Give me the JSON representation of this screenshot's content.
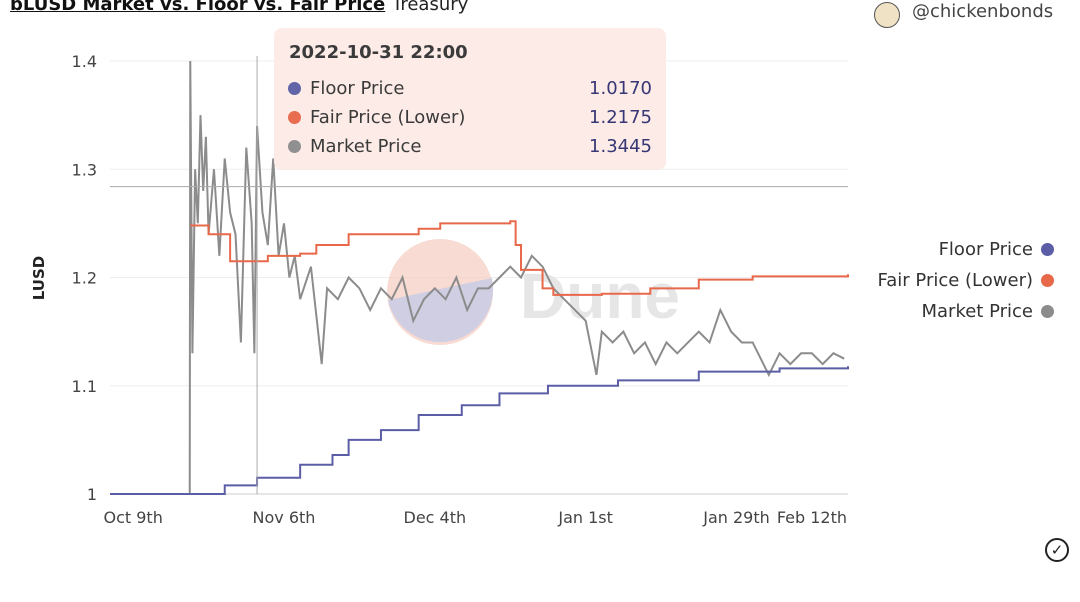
{
  "header": {
    "title": "bLUSD Market vs. Floor vs. Fair Price",
    "subtitle": "Treasury",
    "user": "@chickenbonds"
  },
  "tooltip": {
    "date": "2022-10-31 22:00",
    "rows": [
      {
        "label": "Floor Price",
        "value": "1.0170",
        "color": "#5b5ea6"
      },
      {
        "label": "Fair Price (Lower)",
        "value": "1.2175",
        "color": "#e8684a"
      },
      {
        "label": "Market Price",
        "value": "1.3445",
        "color": "#8c8c8c"
      }
    ]
  },
  "watermark": "Dune",
  "chart_data": {
    "type": "line",
    "title": "bLUSD Market vs. Floor vs. Fair Price",
    "xlabel": "",
    "ylabel": "LUSD",
    "x_unit": "days since Oct 9th",
    "xlim": [
      -4.3,
      132.7
    ],
    "ylim": [
      1,
      1.4
    ],
    "yticks": [
      {
        "v": 1,
        "label": "1"
      },
      {
        "v": 1.1,
        "label": "1.1"
      },
      {
        "v": 1.2,
        "label": "1.2"
      },
      {
        "v": 1.3,
        "label": "1.3"
      },
      {
        "v": 1.4,
        "label": "1.4"
      }
    ],
    "xticks": [
      {
        "v": 0,
        "label": "Oct 9th"
      },
      {
        "v": 28,
        "label": "Nov 6th"
      },
      {
        "v": 56,
        "label": "Dec 4th"
      },
      {
        "v": 84,
        "label": "Jan 1st"
      },
      {
        "v": 112,
        "label": "Jan 29th"
      },
      {
        "v": 126,
        "label": "Feb 12th"
      }
    ],
    "grid": true,
    "legend": "right",
    "crosshair": {
      "x": 23,
      "y": 1.284
    },
    "series": [
      {
        "name": "Floor Price",
        "color": "#5b5ea6",
        "step": true,
        "points": [
          [
            -4.3,
            1.0
          ],
          [
            10.6,
            1.0
          ],
          [
            17,
            1.008
          ],
          [
            23,
            1.015
          ],
          [
            31,
            1.027
          ],
          [
            37,
            1.036
          ],
          [
            40,
            1.05
          ],
          [
            46,
            1.059
          ],
          [
            53,
            1.073
          ],
          [
            61,
            1.082
          ],
          [
            68,
            1.093
          ],
          [
            77,
            1.1
          ],
          [
            90,
            1.105
          ],
          [
            105,
            1.113
          ],
          [
            120,
            1.116
          ],
          [
            132.7,
            1.118
          ]
        ]
      },
      {
        "name": "Fair Price (Lower)",
        "color": "#e8684a",
        "step": true,
        "points": [
          [
            10.6,
            1.248
          ],
          [
            14,
            1.24
          ],
          [
            18,
            1.215
          ],
          [
            25,
            1.22
          ],
          [
            31,
            1.222
          ],
          [
            34,
            1.23
          ],
          [
            40,
            1.24
          ],
          [
            53,
            1.245
          ],
          [
            57,
            1.25
          ],
          [
            70,
            1.252
          ],
          [
            71,
            1.23
          ],
          [
            72,
            1.207
          ],
          [
            76,
            1.19
          ],
          [
            78,
            1.184
          ],
          [
            87,
            1.185
          ],
          [
            96,
            1.19
          ],
          [
            105,
            1.198
          ],
          [
            115,
            1.201
          ],
          [
            132.7,
            1.203
          ]
        ]
      },
      {
        "name": "Market Price",
        "color": "#8c8c8c",
        "step": false,
        "points": [
          [
            10.5,
            1.0
          ],
          [
            10.6,
            1.4
          ],
          [
            11,
            1.13
          ],
          [
            11.5,
            1.3
          ],
          [
            12,
            1.25
          ],
          [
            12.5,
            1.35
          ],
          [
            13,
            1.28
          ],
          [
            13.5,
            1.33
          ],
          [
            14,
            1.24
          ],
          [
            15,
            1.3
          ],
          [
            16,
            1.22
          ],
          [
            17,
            1.31
          ],
          [
            18,
            1.26
          ],
          [
            19,
            1.24
          ],
          [
            20,
            1.14
          ],
          [
            21,
            1.32
          ],
          [
            22,
            1.25
          ],
          [
            22.5,
            1.13
          ],
          [
            23,
            1.34
          ],
          [
            24,
            1.26
          ],
          [
            25,
            1.23
          ],
          [
            26,
            1.31
          ],
          [
            27,
            1.22
          ],
          [
            28,
            1.25
          ],
          [
            29,
            1.2
          ],
          [
            30,
            1.22
          ],
          [
            31,
            1.18
          ],
          [
            33,
            1.21
          ],
          [
            35,
            1.12
          ],
          [
            36,
            1.19
          ],
          [
            38,
            1.18
          ],
          [
            40,
            1.2
          ],
          [
            42,
            1.19
          ],
          [
            44,
            1.17
          ],
          [
            46,
            1.19
          ],
          [
            48,
            1.18
          ],
          [
            50,
            1.2
          ],
          [
            52,
            1.16
          ],
          [
            54,
            1.18
          ],
          [
            56,
            1.19
          ],
          [
            58,
            1.18
          ],
          [
            60,
            1.2
          ],
          [
            62,
            1.17
          ],
          [
            64,
            1.19
          ],
          [
            66,
            1.19
          ],
          [
            68,
            1.2
          ],
          [
            70,
            1.21
          ],
          [
            72,
            1.2
          ],
          [
            74,
            1.22
          ],
          [
            76,
            1.21
          ],
          [
            78,
            1.19
          ],
          [
            80,
            1.18
          ],
          [
            82,
            1.17
          ],
          [
            84,
            1.16
          ],
          [
            86,
            1.11
          ],
          [
            87,
            1.15
          ],
          [
            89,
            1.14
          ],
          [
            91,
            1.15
          ],
          [
            93,
            1.13
          ],
          [
            95,
            1.14
          ],
          [
            97,
            1.12
          ],
          [
            99,
            1.14
          ],
          [
            101,
            1.13
          ],
          [
            103,
            1.14
          ],
          [
            105,
            1.15
          ],
          [
            107,
            1.14
          ],
          [
            109,
            1.17
          ],
          [
            111,
            1.15
          ],
          [
            113,
            1.14
          ],
          [
            115,
            1.14
          ],
          [
            117,
            1.12
          ],
          [
            118,
            1.11
          ],
          [
            120,
            1.13
          ],
          [
            122,
            1.12
          ],
          [
            124,
            1.13
          ],
          [
            126,
            1.13
          ],
          [
            128,
            1.12
          ],
          [
            130,
            1.13
          ],
          [
            132,
            1.125
          ]
        ]
      }
    ]
  }
}
